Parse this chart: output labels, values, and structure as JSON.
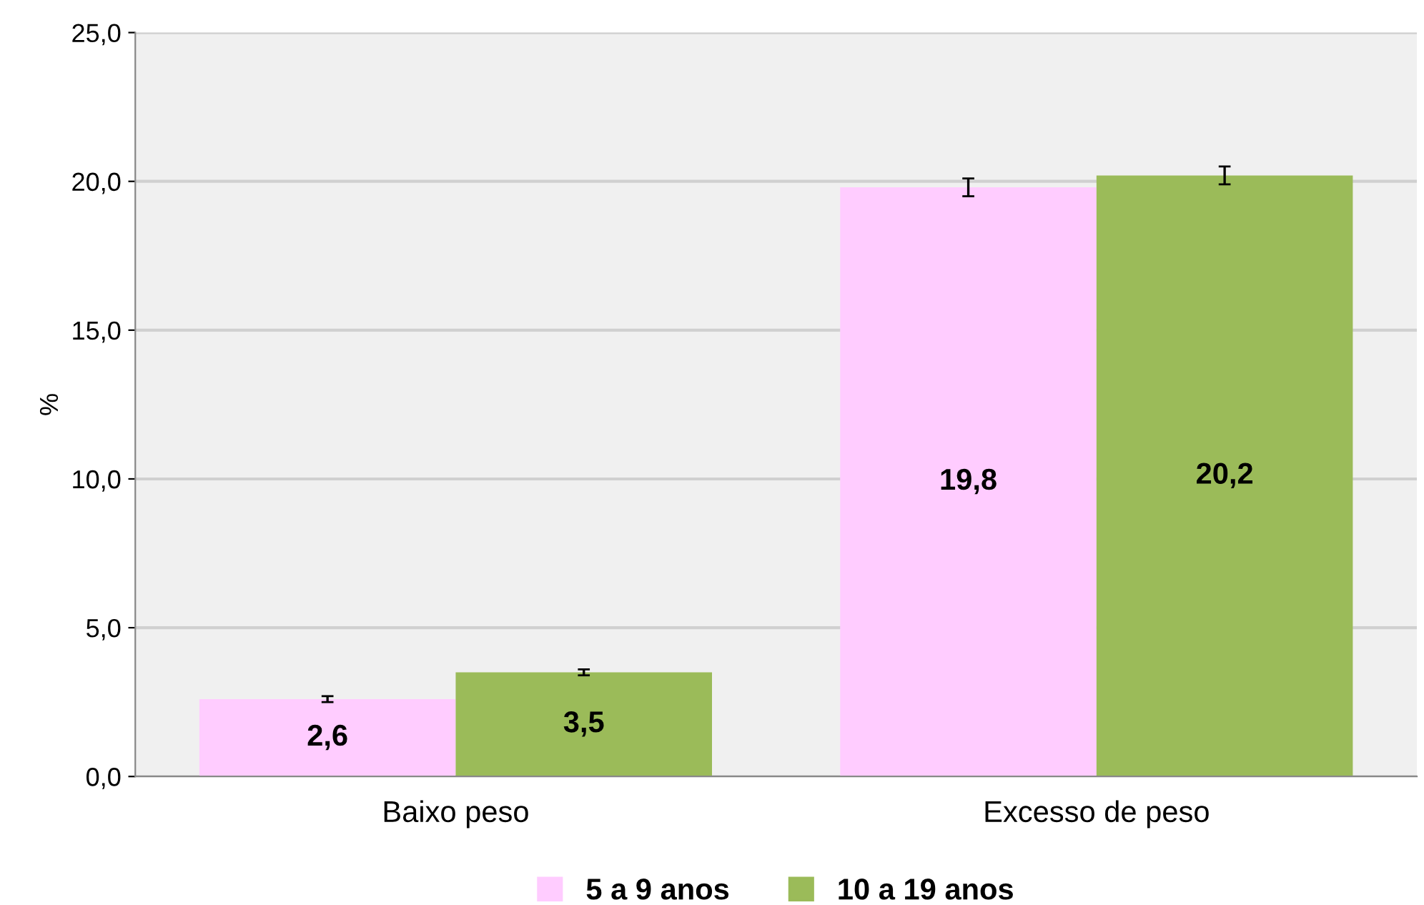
{
  "chart_data": {
    "type": "bar",
    "ylabel": "%",
    "categories": [
      "Baixo peso",
      "Excesso de peso"
    ],
    "series": [
      {
        "name": "5 a 9 anos",
        "color": "#ffccff",
        "values": [
          2.6,
          19.8
        ],
        "errors": [
          0.1,
          0.3
        ],
        "value_labels": [
          "2,6",
          "19,8"
        ]
      },
      {
        "name": "10 a 19 anos",
        "color": "#9bbb59",
        "values": [
          3.5,
          20.2
        ],
        "errors": [
          0.1,
          0.3
        ],
        "value_labels": [
          "3,5",
          "20,2"
        ]
      }
    ],
    "ylim": [
      0,
      25
    ],
    "yticks": [
      {
        "value": 0,
        "label": "0,0"
      },
      {
        "value": 5,
        "label": "5,0"
      },
      {
        "value": 10,
        "label": "10,0"
      },
      {
        "value": 15,
        "label": "15,0"
      },
      {
        "value": 20,
        "label": "20,0"
      },
      {
        "value": 25,
        "label": "25,0"
      }
    ],
    "grid": "y",
    "legend": "bottom"
  }
}
